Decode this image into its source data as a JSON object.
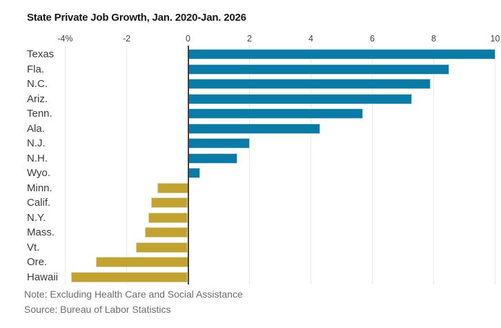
{
  "title": "State Private Job Growth, Jan. 2020-Jan. 2026",
  "chart_data": {
    "type": "bar",
    "orientation": "horizontal",
    "title": "State Private Job Growth, Jan. 2020-Jan. 2026",
    "categories": [
      "Texas",
      "Fla.",
      "N.C.",
      "Ariz.",
      "Tenn.",
      "Ala.",
      "N.J.",
      "N.H.",
      "Wyo.",
      "Minn.",
      "Calif.",
      "N.Y.",
      "Mass.",
      "Vt.",
      "Ore.",
      "Hawaii"
    ],
    "values": [
      10.0,
      8.5,
      7.9,
      7.3,
      5.7,
      4.3,
      2.0,
      1.6,
      0.4,
      -1.0,
      -1.2,
      -1.3,
      -1.4,
      -1.7,
      -3.0,
      -3.8
    ],
    "unit": "%",
    "xlim": [
      -4,
      10
    ],
    "xticks": [
      {
        "label": "-4%",
        "value": -4
      },
      {
        "label": "-2",
        "value": -2
      },
      {
        "label": "0",
        "value": 0
      },
      {
        "label": "2",
        "value": 2
      },
      {
        "label": "4",
        "value": 4
      },
      {
        "label": "6",
        "value": 6
      },
      {
        "label": "8",
        "value": 8
      },
      {
        "label": "10",
        "value": 10
      }
    ],
    "positive_color": "#087ca7",
    "negative_color": "#c2a32f",
    "grid": "vertical-light",
    "legend": "none",
    "zero_line": true
  },
  "footer": {
    "note": "Note: Excluding Health Care and Social Assistance",
    "source": "Source: Bureau of Labor Statistics"
  }
}
